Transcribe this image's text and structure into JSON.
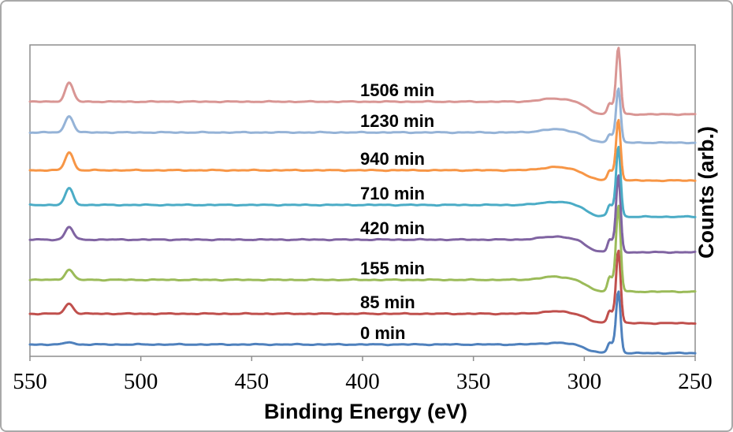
{
  "figure": {
    "border_color": "#a9a9a9",
    "background": "#ffffff",
    "plot_border_color": "#8e8e8e"
  },
  "chart_data": {
    "type": "line",
    "title": "",
    "xlabel": "Binding Energy (eV)",
    "ylabel": "Counts (arb.)",
    "x_axis": {
      "unit": "eV",
      "min": 250,
      "max": 550,
      "reversed": true,
      "ticks": [
        550,
        500,
        450,
        400,
        350,
        300,
        250
      ]
    },
    "y_axis": {
      "unit": "arb",
      "tick_labels_shown": false
    },
    "grid": false,
    "legend_position": "inline-labels-above-each-trace",
    "peak_positions_eV": {
      "o1s_peak": 532.3,
      "c1s_peak": 284.6,
      "broad_hump": 313
    },
    "series": [
      {
        "name": "1506 min",
        "color": "#D99694",
        "offset": 323,
        "o1s_height": 24,
        "c1s_height": 69,
        "hump_height": 4,
        "bg_step": 16
      },
      {
        "name": "1230 min",
        "color": "#95B3D7",
        "offset": 284,
        "o1s_height": 21,
        "c1s_height": 56,
        "hump_height": 4,
        "bg_step": 13
      },
      {
        "name": "940 min",
        "color": "#F79646",
        "offset": 236,
        "o1s_height": 23,
        "c1s_height": 65,
        "hump_height": 4,
        "bg_step": 13
      },
      {
        "name": "710 min",
        "color": "#4BACC6",
        "offset": 192,
        "o1s_height": 21,
        "c1s_height": 75,
        "hump_height": 4,
        "bg_step": 15
      },
      {
        "name": "420 min",
        "color": "#8064A2",
        "offset": 148,
        "o1s_height": 16,
        "c1s_height": 82,
        "hump_height": 4,
        "bg_step": 16
      },
      {
        "name": "155 min",
        "color": "#9BBB59",
        "offset": 97,
        "o1s_height": 13,
        "c1s_height": 95,
        "hump_height": 4,
        "bg_step": 15
      },
      {
        "name": "85 min",
        "color": "#C0504D",
        "offset": 54,
        "o1s_height": 13,
        "c1s_height": 81,
        "hump_height": 3,
        "bg_step": 12
      },
      {
        "name": "0 min",
        "color": "#4F81BD",
        "offset": 15,
        "o1s_height": 3,
        "c1s_height": 68,
        "hump_height": 2,
        "bg_step": 11
      }
    ]
  }
}
